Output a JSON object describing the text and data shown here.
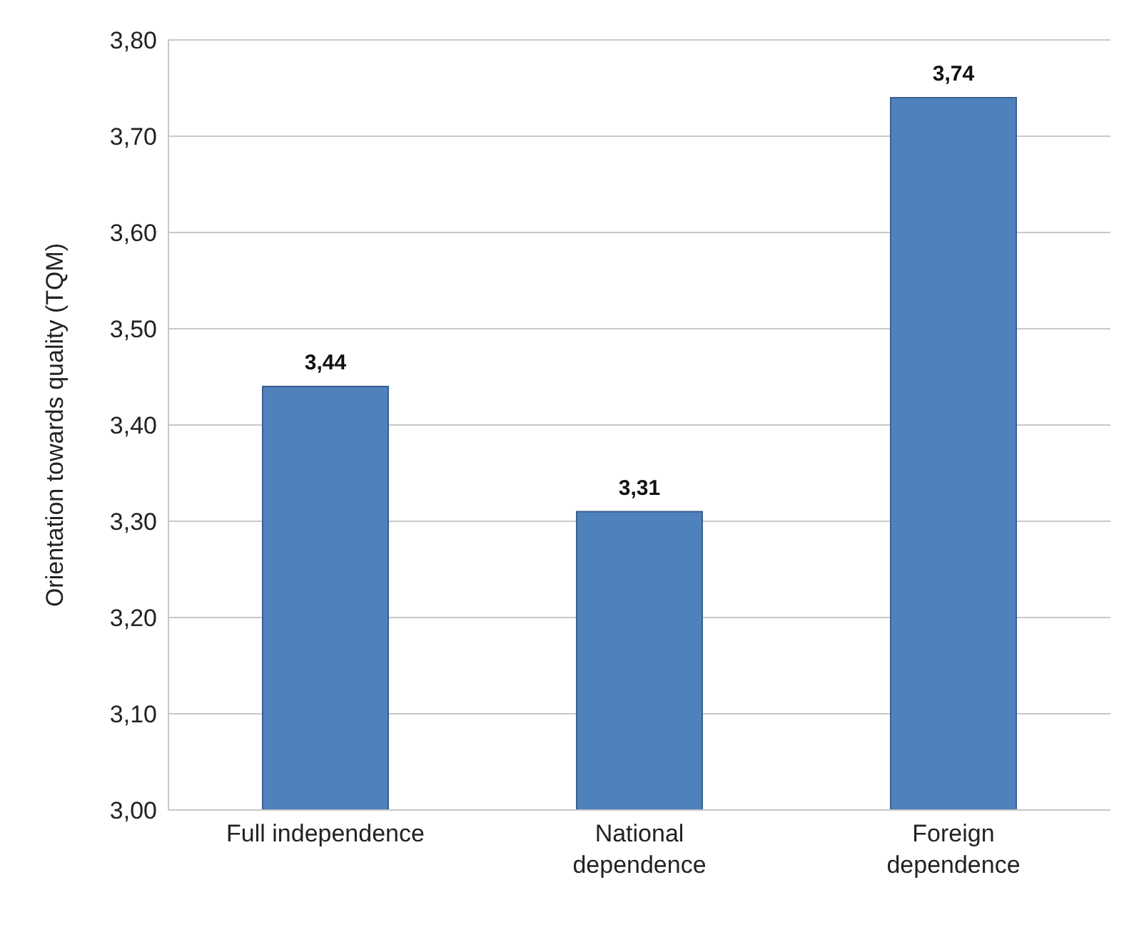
{
  "chart_data": {
    "type": "bar",
    "ylabel": "Orientation towards quality (TQM)",
    "categories": [
      "Full independence",
      "National dependence",
      "Foreign dependence"
    ],
    "values": [
      3.44,
      3.31,
      3.74
    ],
    "value_labels": [
      "3,44",
      "3,31",
      "3,74"
    ],
    "color": "#4f81bd",
    "ylim": [
      3,
      3.8
    ],
    "yticks": [
      {
        "value": 3,
        "label": "3,00"
      },
      {
        "value": 3.1,
        "label": "3,10"
      },
      {
        "value": 3.2,
        "label": "3,20"
      },
      {
        "value": 3.3,
        "label": "3,30"
      },
      {
        "value": 3.4,
        "label": "3,40"
      },
      {
        "value": 3.5,
        "label": "3,50"
      },
      {
        "value": 3.6,
        "label": "3,60"
      },
      {
        "value": 3.7,
        "label": "3,70"
      },
      {
        "value": 3.8,
        "label": "3,80"
      }
    ],
    "grid": "y"
  }
}
